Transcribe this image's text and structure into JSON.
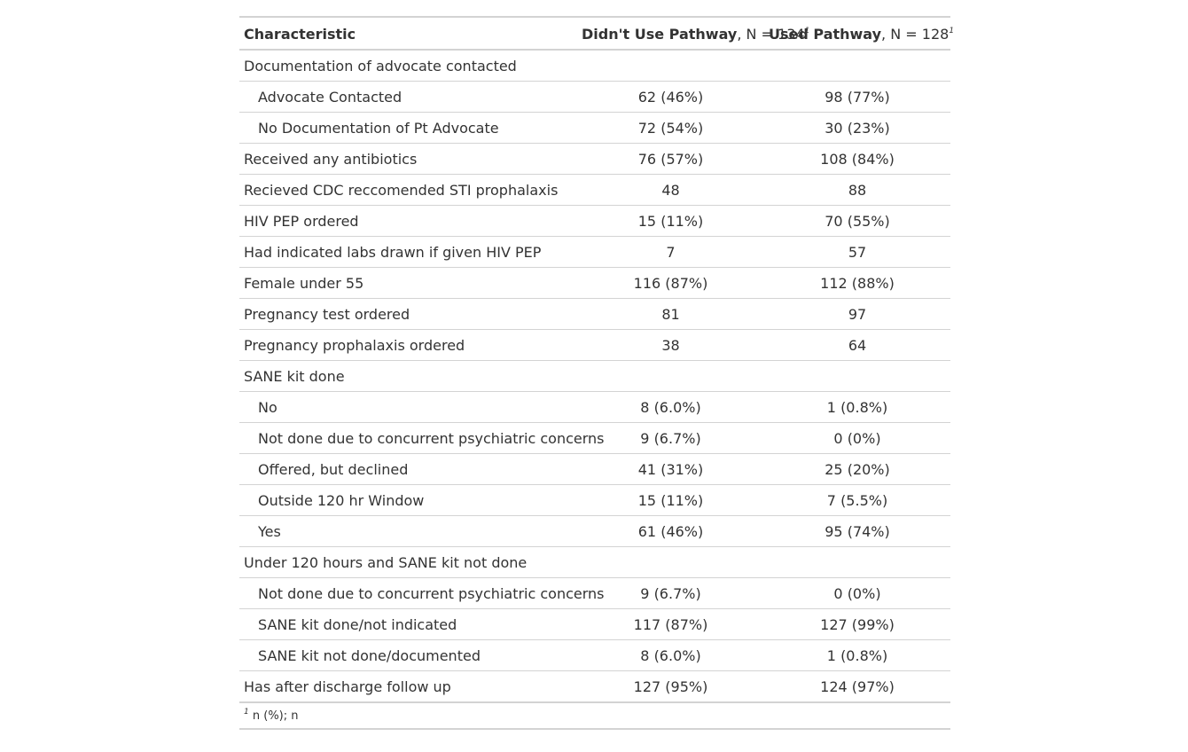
{
  "header": {
    "characteristic": "Characteristic",
    "group1_name": "Didn't Use Pathway",
    "group1_n": ", N = 134",
    "group2_name": "Used Pathway",
    "group2_n": ", N = 128",
    "footnote_mark": "1"
  },
  "rows": [
    {
      "label": "Documentation of advocate contacted",
      "indent": false,
      "g1": "",
      "g2": ""
    },
    {
      "label": "Advocate Contacted",
      "indent": true,
      "g1": "62 (46%)",
      "g2": "98 (77%)"
    },
    {
      "label": "No Documentation of Pt Advocate",
      "indent": true,
      "g1": "72 (54%)",
      "g2": "30 (23%)"
    },
    {
      "label": "Received any antibiotics",
      "indent": false,
      "g1": "76 (57%)",
      "g2": "108 (84%)"
    },
    {
      "label": "Recieved CDC reccomended STI prophalaxis",
      "indent": false,
      "g1": "48",
      "g2": "88"
    },
    {
      "label": "HIV PEP ordered",
      "indent": false,
      "g1": "15 (11%)",
      "g2": "70 (55%)"
    },
    {
      "label": "Had indicated labs drawn if given HIV PEP",
      "indent": false,
      "g1": "7",
      "g2": "57"
    },
    {
      "label": "Female under 55",
      "indent": false,
      "g1": "116 (87%)",
      "g2": "112 (88%)"
    },
    {
      "label": "Pregnancy test ordered",
      "indent": false,
      "g1": "81",
      "g2": "97"
    },
    {
      "label": "Pregnancy prophalaxis ordered",
      "indent": false,
      "g1": "38",
      "g2": "64"
    },
    {
      "label": "SANE kit done",
      "indent": false,
      "g1": "",
      "g2": ""
    },
    {
      "label": "No",
      "indent": true,
      "g1": "8 (6.0%)",
      "g2": "1 (0.8%)"
    },
    {
      "label": "Not done due to concurrent psychiatric concerns",
      "indent": true,
      "g1": "9 (6.7%)",
      "g2": "0 (0%)"
    },
    {
      "label": "Offered, but declined",
      "indent": true,
      "g1": "41 (31%)",
      "g2": "25 (20%)"
    },
    {
      "label": "Outside 120 hr Window",
      "indent": true,
      "g1": "15 (11%)",
      "g2": "7 (5.5%)"
    },
    {
      "label": "Yes",
      "indent": true,
      "g1": "61 (46%)",
      "g2": "95 (74%)"
    },
    {
      "label": "Under 120 hours and SANE kit not done",
      "indent": false,
      "g1": "",
      "g2": ""
    },
    {
      "label": "Not done due to concurrent psychiatric concerns",
      "indent": true,
      "g1": "9 (6.7%)",
      "g2": "0 (0%)"
    },
    {
      "label": "SANE kit done/not indicated",
      "indent": true,
      "g1": "117 (87%)",
      "g2": "127 (99%)"
    },
    {
      "label": "SANE kit not done/documented",
      "indent": true,
      "g1": "8 (6.0%)",
      "g2": "1 (0.8%)"
    },
    {
      "label": "Has after discharge follow up",
      "indent": false,
      "g1": "127 (95%)",
      "g2": "124 (97%)"
    }
  ],
  "footnote": {
    "mark": "1",
    "text": "n (%); n"
  }
}
